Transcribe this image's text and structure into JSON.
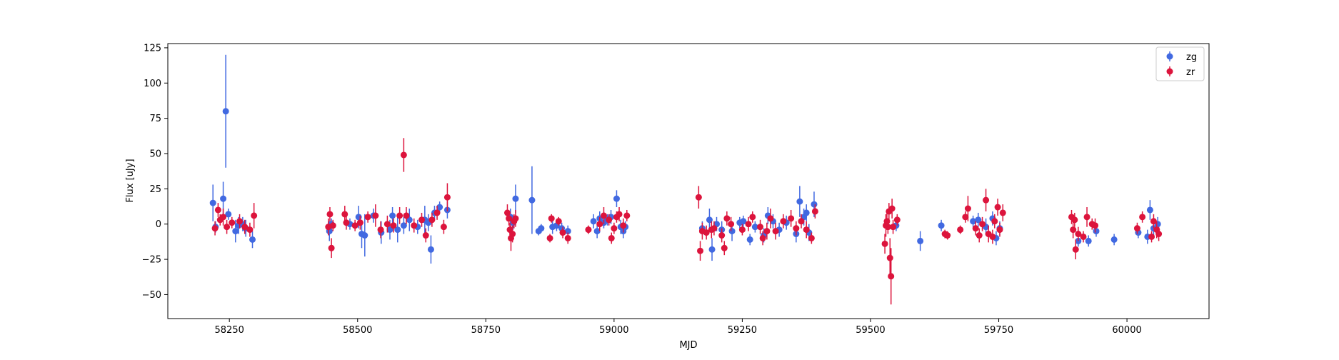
{
  "chart_data": {
    "type": "scatter",
    "title": "",
    "xlabel": "MJD",
    "ylabel": "Flux [uJy]",
    "xlim": [
      58130,
      60160
    ],
    "ylim": [
      -67,
      128
    ],
    "xticks": [
      58250,
      58500,
      58750,
      59000,
      59250,
      59500,
      59750,
      60000
    ],
    "xtick_labels": [
      "58250",
      "58500",
      "58750",
      "59000",
      "59250",
      "59500",
      "59750",
      "60000"
    ],
    "yticks": [
      -50,
      -25,
      0,
      25,
      50,
      75,
      100,
      125
    ],
    "ytick_labels": [
      "−50",
      "−25",
      "0",
      "25",
      "50",
      "75",
      "100",
      "125"
    ],
    "grid": false,
    "legend_position": "top-right",
    "series": [
      {
        "name": "zg",
        "color": "#4169e1",
        "marker": "circle-with-errorbar",
        "points": [
          [
            58218,
            15,
            13
          ],
          [
            58223,
            -2,
            4
          ],
          [
            58238,
            18,
            12
          ],
          [
            58243,
            80,
            40
          ],
          [
            58248,
            7,
            4
          ],
          [
            58262,
            -5,
            8
          ],
          [
            58268,
            -1,
            6
          ],
          [
            58276,
            0,
            5
          ],
          [
            58282,
            -3,
            6
          ],
          [
            58295,
            -11,
            6
          ],
          [
            58445,
            -5,
            7
          ],
          [
            58449,
            0,
            4
          ],
          [
            58485,
            0,
            4
          ],
          [
            58502,
            5,
            8
          ],
          [
            58508,
            -7,
            10
          ],
          [
            58514,
            -8,
            15
          ],
          [
            58531,
            6,
            5
          ],
          [
            58546,
            -6,
            8
          ],
          [
            58563,
            -4,
            7
          ],
          [
            58568,
            6,
            6
          ],
          [
            58578,
            -4,
            9
          ],
          [
            58590,
            -1,
            6
          ],
          [
            58601,
            3,
            8
          ],
          [
            58617,
            -2,
            5
          ],
          [
            58631,
            3,
            10
          ],
          [
            58638,
            1,
            6
          ],
          [
            58643,
            -18,
            10
          ],
          [
            58650,
            8,
            5
          ],
          [
            58660,
            12,
            4
          ],
          [
            58675,
            10,
            6
          ],
          [
            58798,
            5,
            6
          ],
          [
            58803,
            1,
            5
          ],
          [
            58808,
            18,
            10
          ],
          [
            58840,
            17,
            24
          ],
          [
            58853,
            -5,
            3
          ],
          [
            58858,
            -3,
            3
          ],
          [
            58880,
            -2,
            5
          ],
          [
            58888,
            -1,
            4
          ],
          [
            58898,
            -3,
            4
          ],
          [
            58910,
            -5,
            4
          ],
          [
            58960,
            2,
            5
          ],
          [
            58967,
            -5,
            5
          ],
          [
            58972,
            4,
            5
          ],
          [
            58980,
            1,
            4
          ],
          [
            58987,
            3,
            4
          ],
          [
            58994,
            5,
            5
          ],
          [
            59005,
            18,
            6
          ],
          [
            59013,
            -2,
            5
          ],
          [
            59018,
            -5,
            5
          ],
          [
            59022,
            -2,
            4
          ],
          [
            59172,
            -3,
            5
          ],
          [
            59186,
            3,
            8
          ],
          [
            59191,
            -18,
            8
          ],
          [
            59200,
            0,
            5
          ],
          [
            59210,
            -4,
            6
          ],
          [
            59230,
            -5,
            7
          ],
          [
            59245,
            1,
            4
          ],
          [
            59252,
            2,
            4
          ],
          [
            59265,
            -11,
            4
          ],
          [
            59275,
            -2,
            4
          ],
          [
            59292,
            -8,
            5
          ],
          [
            59300,
            6,
            6
          ],
          [
            59310,
            2,
            5
          ],
          [
            59322,
            -4,
            5
          ],
          [
            59336,
            1,
            5
          ],
          [
            59355,
            -7,
            6
          ],
          [
            59362,
            16,
            11
          ],
          [
            59370,
            5,
            6
          ],
          [
            59375,
            8,
            6
          ],
          [
            59380,
            -6,
            6
          ],
          [
            59390,
            14,
            9
          ],
          [
            59550,
            -1,
            4
          ],
          [
            59597,
            -12,
            7
          ],
          [
            59638,
            -1,
            4
          ],
          [
            59700,
            2,
            4
          ],
          [
            59710,
            3,
            5
          ],
          [
            59725,
            -2,
            6
          ],
          [
            59738,
            4,
            5
          ],
          [
            59745,
            -10,
            5
          ],
          [
            59752,
            -3,
            5
          ],
          [
            59905,
            -12,
            4
          ],
          [
            59925,
            -12,
            4
          ],
          [
            59940,
            -5,
            4
          ],
          [
            59975,
            -11,
            4
          ],
          [
            60022,
            -6,
            4
          ],
          [
            60040,
            -9,
            5
          ],
          [
            60045,
            10,
            7
          ],
          [
            60052,
            -3,
            5
          ],
          [
            60060,
            0,
            5
          ]
        ]
      },
      {
        "name": "zr",
        "color": "#dc143c",
        "marker": "circle-with-errorbar",
        "points": [
          [
            58222,
            -3,
            5
          ],
          [
            58228,
            10,
            5
          ],
          [
            58232,
            3,
            4
          ],
          [
            58238,
            5,
            6
          ],
          [
            58245,
            -2,
            5
          ],
          [
            58255,
            1,
            4
          ],
          [
            58270,
            2,
            5
          ],
          [
            58280,
            -2,
            5
          ],
          [
            58290,
            -4,
            5
          ],
          [
            58298,
            6,
            9
          ],
          [
            58443,
            -2,
            6
          ],
          [
            58446,
            7,
            5
          ],
          [
            58449,
            -17,
            7
          ],
          [
            58452,
            -1,
            4
          ],
          [
            58475,
            7,
            6
          ],
          [
            58478,
            1,
            5
          ],
          [
            58495,
            -1,
            4
          ],
          [
            58505,
            1,
            5
          ],
          [
            58520,
            5,
            4
          ],
          [
            58535,
            6,
            8
          ],
          [
            58545,
            -4,
            6
          ],
          [
            58558,
            0,
            6
          ],
          [
            58570,
            -1,
            5
          ],
          [
            58582,
            6,
            6
          ],
          [
            58590,
            49,
            12
          ],
          [
            58595,
            6,
            6
          ],
          [
            58610,
            -1,
            5
          ],
          [
            58625,
            3,
            5
          ],
          [
            58633,
            -8,
            5
          ],
          [
            58645,
            3,
            5
          ],
          [
            58655,
            8,
            5
          ],
          [
            58668,
            -2,
            5
          ],
          [
            58675,
            19,
            10
          ],
          [
            58792,
            8,
            6
          ],
          [
            58795,
            4,
            5
          ],
          [
            58797,
            -4,
            5
          ],
          [
            58799,
            -10,
            9
          ],
          [
            58802,
            -7,
            6
          ],
          [
            58805,
            2,
            5
          ],
          [
            58808,
            4,
            6
          ],
          [
            58875,
            -10,
            3
          ],
          [
            58878,
            4,
            3
          ],
          [
            58892,
            2,
            3
          ],
          [
            58900,
            -6,
            4
          ],
          [
            58910,
            -10,
            4
          ],
          [
            58950,
            -4,
            3
          ],
          [
            58972,
            0,
            5
          ],
          [
            58980,
            6,
            6
          ],
          [
            58990,
            3,
            4
          ],
          [
            58995,
            -10,
            4
          ],
          [
            59000,
            -3,
            4
          ],
          [
            59005,
            5,
            4
          ],
          [
            59010,
            7,
            5
          ],
          [
            59018,
            -1,
            5
          ],
          [
            59025,
            6,
            4
          ],
          [
            59165,
            19,
            8
          ],
          [
            59168,
            -19,
            7
          ],
          [
            59172,
            -5,
            6
          ],
          [
            59180,
            -6,
            5
          ],
          [
            59190,
            -4,
            6
          ],
          [
            59195,
            -3,
            5
          ],
          [
            59210,
            -8,
            5
          ],
          [
            59215,
            -17,
            5
          ],
          [
            59220,
            4,
            5
          ],
          [
            59228,
            0,
            5
          ],
          [
            59250,
            -4,
            4
          ],
          [
            59262,
            0,
            5
          ],
          [
            59270,
            5,
            4
          ],
          [
            59285,
            -2,
            5
          ],
          [
            59290,
            -10,
            5
          ],
          [
            59298,
            -5,
            6
          ],
          [
            59305,
            4,
            7
          ],
          [
            59315,
            -5,
            6
          ],
          [
            59330,
            2,
            5
          ],
          [
            59345,
            4,
            6
          ],
          [
            59355,
            -3,
            5
          ],
          [
            59365,
            2,
            5
          ],
          [
            59375,
            -4,
            6
          ],
          [
            59385,
            -10,
            4
          ],
          [
            59392,
            9,
            5
          ],
          [
            59528,
            -14,
            7
          ],
          [
            59530,
            -1,
            8
          ],
          [
            59532,
            2,
            6
          ],
          [
            59534,
            -2,
            5
          ],
          [
            59536,
            9,
            6
          ],
          [
            59538,
            -24,
            14
          ],
          [
            59540,
            -37,
            20
          ],
          [
            59542,
            11,
            7
          ],
          [
            59544,
            -2,
            5
          ],
          [
            59552,
            3,
            4
          ],
          [
            59645,
            -7,
            3
          ],
          [
            59650,
            -8,
            3
          ],
          [
            59675,
            -4,
            3
          ],
          [
            59685,
            5,
            4
          ],
          [
            59690,
            11,
            9
          ],
          [
            59705,
            -3,
            5
          ],
          [
            59712,
            -8,
            5
          ],
          [
            59718,
            0,
            5
          ],
          [
            59725,
            17,
            8
          ],
          [
            59730,
            -7,
            6
          ],
          [
            59738,
            -9,
            5
          ],
          [
            59742,
            2,
            5
          ],
          [
            59748,
            12,
            6
          ],
          [
            59752,
            -4,
            5
          ],
          [
            59758,
            8,
            6
          ],
          [
            59892,
            5,
            5
          ],
          [
            59895,
            -4,
            6
          ],
          [
            59898,
            3,
            5
          ],
          [
            59900,
            -18,
            7
          ],
          [
            59905,
            -7,
            5
          ],
          [
            59915,
            -9,
            4
          ],
          [
            59922,
            5,
            7
          ],
          [
            59932,
            0,
            4
          ],
          [
            59938,
            -1,
            5
          ],
          [
            60020,
            -3,
            4
          ],
          [
            60030,
            5,
            4
          ],
          [
            60048,
            -9,
            4
          ],
          [
            60052,
            2,
            5
          ],
          [
            60058,
            -4,
            6
          ],
          [
            60062,
            -7,
            5
          ]
        ]
      }
    ]
  }
}
